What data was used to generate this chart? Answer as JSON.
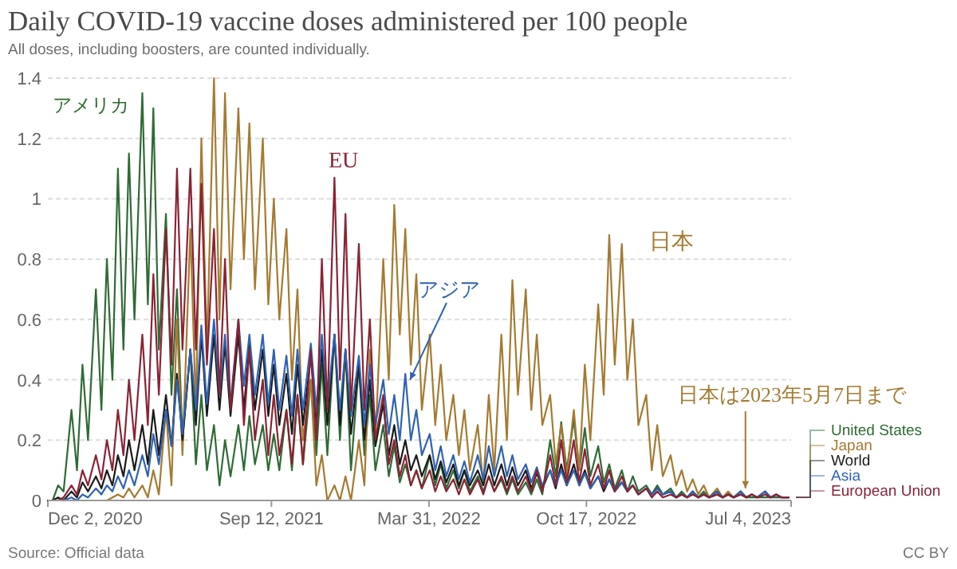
{
  "chart_data": {
    "type": "line",
    "title": "Daily COVID-19 vaccine doses administered per 100 people",
    "subtitle": "All doses, including boosters, are counted individually.",
    "x": [
      "2020-12-02",
      "2020-12-08",
      "2020-12-15",
      "2020-12-22",
      "2021-01-01",
      "2021-01-08",
      "2021-01-15",
      "2021-01-22",
      "2021-02-01",
      "2021-02-08",
      "2021-02-15",
      "2021-02-22",
      "2021-03-01",
      "2021-03-08",
      "2021-03-15",
      "2021-03-22",
      "2021-04-01",
      "2021-04-08",
      "2021-04-15",
      "2021-04-22",
      "2021-05-01",
      "2021-05-08",
      "2021-05-15",
      "2021-05-22",
      "2021-06-01",
      "2021-06-08",
      "2021-06-15",
      "2021-06-22",
      "2021-07-01",
      "2021-07-08",
      "2021-07-15",
      "2021-07-22",
      "2021-08-01",
      "2021-08-08",
      "2021-08-15",
      "2021-08-22",
      "2021-09-01",
      "2021-09-08",
      "2021-09-15",
      "2021-09-22",
      "2021-10-01",
      "2021-10-08",
      "2021-10-15",
      "2021-10-22",
      "2021-11-01",
      "2021-11-08",
      "2021-11-15",
      "2021-11-22",
      "2021-12-01",
      "2021-12-08",
      "2021-12-15",
      "2021-12-22",
      "2022-01-01",
      "2022-01-08",
      "2022-01-15",
      "2022-01-22",
      "2022-02-01",
      "2022-02-08",
      "2022-02-15",
      "2022-02-22",
      "2022-03-01",
      "2022-03-08",
      "2022-03-15",
      "2022-03-22",
      "2022-04-01",
      "2022-04-08",
      "2022-04-15",
      "2022-04-22",
      "2022-05-01",
      "2022-05-08",
      "2022-05-15",
      "2022-05-22",
      "2022-06-01",
      "2022-06-08",
      "2022-06-15",
      "2022-06-22",
      "2022-07-01",
      "2022-07-08",
      "2022-07-15",
      "2022-07-22",
      "2022-08-01",
      "2022-08-08",
      "2022-08-15",
      "2022-08-22",
      "2022-09-01",
      "2022-09-08",
      "2022-09-15",
      "2022-09-22",
      "2022-10-01",
      "2022-10-08",
      "2022-10-15",
      "2022-10-22",
      "2022-11-01",
      "2022-11-08",
      "2022-11-15",
      "2022-11-22",
      "2022-12-01",
      "2022-12-08",
      "2022-12-15",
      "2022-12-22",
      "2023-01-01",
      "2023-01-08",
      "2023-01-15",
      "2023-01-22",
      "2023-02-01",
      "2023-02-08",
      "2023-02-15",
      "2023-02-22",
      "2023-03-01",
      "2023-03-08",
      "2023-03-15",
      "2023-03-22",
      "2023-04-01",
      "2023-04-08",
      "2023-04-15",
      "2023-04-22",
      "2023-05-01",
      "2023-05-08",
      "2023-05-15",
      "2023-05-22",
      "2023-06-01",
      "2023-06-08",
      "2023-06-15",
      "2023-06-22",
      "2023-07-01"
    ],
    "series": [
      {
        "name": "United States",
        "color": "#2f6b35",
        "values": [
          0,
          0,
          0.05,
          0.03,
          0.3,
          0.1,
          0.45,
          0.2,
          0.7,
          0.3,
          0.8,
          0.4,
          1.1,
          0.5,
          1.15,
          0.6,
          1.35,
          0.65,
          1.3,
          0.5,
          0.95,
          0.35,
          0.7,
          0.2,
          0.5,
          0.12,
          0.35,
          0.1,
          0.25,
          0.05,
          0.2,
          0.08,
          0.25,
          0.1,
          0.28,
          0.12,
          0.25,
          0.1,
          0.22,
          0.1,
          0.3,
          0.1,
          0.35,
          0.12,
          0.4,
          0.15,
          0.45,
          0.15,
          0.55,
          0.2,
          0.5,
          0.1,
          0.45,
          0.15,
          0.35,
          0.1,
          0.25,
          0.08,
          0.18,
          0.06,
          0.12,
          0.05,
          0.1,
          0.04,
          0.15,
          0.05,
          0.12,
          0.04,
          0.1,
          0.04,
          0.1,
          0.03,
          0.08,
          0.03,
          0.08,
          0.03,
          0.07,
          0.02,
          0.07,
          0.02,
          0.06,
          0.02,
          0.07,
          0.02,
          0.2,
          0.08,
          0.26,
          0.1,
          0.27,
          0.1,
          0.24,
          0.08,
          0.18,
          0.06,
          0.12,
          0.04,
          0.1,
          0.03,
          0.08,
          0.03,
          0.05,
          0.02,
          0.05,
          0.02,
          0.04,
          0.01,
          0.03,
          0.01,
          0.03,
          0.01,
          0.03,
          0.01,
          0.02,
          0.01,
          0.02,
          0.01,
          0.02,
          0.01,
          0.01,
          0.01,
          0.01,
          0.01,
          0.01,
          0.01,
          0.01
        ]
      },
      {
        "name": "Japan",
        "color": "#a57a30",
        "values": [
          null,
          null,
          null,
          null,
          null,
          null,
          null,
          null,
          null,
          null,
          0,
          0.01,
          0.02,
          0.01,
          0.04,
          0.01,
          0.05,
          0.01,
          0.1,
          0.02,
          0.3,
          0.05,
          0.6,
          0.15,
          0.9,
          0.3,
          1.2,
          0.5,
          1.4,
          0.6,
          1.35,
          0.7,
          1.3,
          0.8,
          1.25,
          0.7,
          1.2,
          0.65,
          1,
          0.6,
          0.9,
          0.4,
          0.7,
          0.2,
          0.4,
          0.05,
          0.15,
          0,
          0.05,
          0,
          0.08,
          0,
          0.2,
          0.05,
          0.5,
          0.2,
          0.8,
          0.4,
          0.98,
          0.55,
          0.9,
          0.45,
          0.75,
          0.3,
          0.55,
          0.25,
          0.45,
          0.2,
          0.35,
          0.15,
          0.3,
          0.1,
          0.25,
          0.05,
          0.35,
          0.1,
          0.55,
          0.2,
          0.73,
          0.35,
          0.7,
          0.3,
          0.55,
          0.25,
          0.35,
          0.12,
          0.25,
          0.08,
          0.3,
          0.1,
          0.45,
          0.2,
          0.65,
          0.35,
          0.88,
          0.45,
          0.85,
          0.4,
          0.6,
          0.25,
          0.35,
          0.1,
          0.25,
          0.08,
          0.15,
          0.05,
          0.1,
          0.03,
          0.07,
          0.02,
          0.05,
          0.01,
          0.04,
          0.01,
          0.03,
          0.01,
          0.03,
          0.01,
          null,
          null,
          null,
          null,
          null,
          null,
          null
        ]
      },
      {
        "name": "World",
        "color": "#1a1a1a",
        "values": [
          0,
          0,
          0.01,
          0,
          0.03,
          0.01,
          0.06,
          0.03,
          0.08,
          0.04,
          0.1,
          0.05,
          0.15,
          0.08,
          0.2,
          0.1,
          0.25,
          0.12,
          0.3,
          0.15,
          0.35,
          0.18,
          0.42,
          0.2,
          0.5,
          0.25,
          0.55,
          0.28,
          0.55,
          0.3,
          0.52,
          0.28,
          0.55,
          0.3,
          0.52,
          0.3,
          0.5,
          0.28,
          0.45,
          0.25,
          0.42,
          0.22,
          0.45,
          0.25,
          0.48,
          0.25,
          0.5,
          0.25,
          0.55,
          0.25,
          0.5,
          0.22,
          0.45,
          0.2,
          0.4,
          0.18,
          0.32,
          0.15,
          0.25,
          0.12,
          0.2,
          0.1,
          0.15,
          0.08,
          0.15,
          0.07,
          0.13,
          0.06,
          0.12,
          0.05,
          0.1,
          0.05,
          0.1,
          0.05,
          0.12,
          0.05,
          0.12,
          0.05,
          0.11,
          0.05,
          0.1,
          0.04,
          0.09,
          0.04,
          0.1,
          0.04,
          0.12,
          0.05,
          0.12,
          0.05,
          0.1,
          0.04,
          0.08,
          0.03,
          0.07,
          0.03,
          0.06,
          0.03,
          0.05,
          0.02,
          0.04,
          0.02,
          0.04,
          0.02,
          0.03,
          0.01,
          0.02,
          0.01,
          0.03,
          0.01,
          0.02,
          0.01,
          0.03,
          0.01,
          0.02,
          0.01,
          0.03,
          0.01,
          0.02,
          0.01,
          0.03,
          0.01,
          0.02,
          0.01,
          0.01
        ]
      },
      {
        "name": "Asia",
        "color": "#2f62b3",
        "values": [
          0,
          0,
          0,
          0,
          0.01,
          0,
          0.02,
          0.01,
          0.04,
          0.02,
          0.05,
          0.03,
          0.08,
          0.04,
          0.1,
          0.05,
          0.15,
          0.08,
          0.22,
          0.12,
          0.3,
          0.18,
          0.4,
          0.22,
          0.5,
          0.3,
          0.58,
          0.32,
          0.6,
          0.35,
          0.55,
          0.32,
          0.6,
          0.38,
          0.55,
          0.35,
          0.55,
          0.32,
          0.5,
          0.3,
          0.48,
          0.28,
          0.5,
          0.3,
          0.52,
          0.3,
          0.55,
          0.32,
          0.55,
          0.3,
          0.5,
          0.28,
          0.48,
          0.25,
          0.45,
          0.25,
          0.4,
          0.22,
          0.35,
          0.2,
          0.42,
          0.2,
          0.3,
          0.15,
          0.22,
          0.1,
          0.18,
          0.08,
          0.15,
          0.07,
          0.13,
          0.06,
          0.15,
          0.07,
          0.18,
          0.08,
          0.18,
          0.08,
          0.15,
          0.07,
          0.12,
          0.06,
          0.11,
          0.05,
          0.1,
          0.05,
          0.1,
          0.05,
          0.1,
          0.05,
          0.09,
          0.04,
          0.08,
          0.04,
          0.07,
          0.03,
          0.06,
          0.03,
          0.05,
          0.02,
          0.04,
          0.02,
          0.04,
          0.02,
          0.03,
          0.01,
          0.02,
          0.01,
          0.03,
          0.01,
          0.02,
          0.01,
          0.03,
          0.01,
          0.02,
          0.01,
          0.03,
          0.01,
          0.02,
          0.01,
          0.03,
          0.01,
          0.02,
          0.01,
          0.01
        ]
      },
      {
        "name": "European Union",
        "color": "#8a2334",
        "values": [
          0,
          0,
          0,
          0.01,
          0.05,
          0.02,
          0.1,
          0.05,
          0.15,
          0.07,
          0.2,
          0.1,
          0.3,
          0.15,
          0.4,
          0.2,
          0.55,
          0.25,
          0.75,
          0.35,
          0.9,
          0.45,
          1.1,
          0.5,
          1.1,
          0.5,
          1.05,
          0.45,
          0.9,
          0.35,
          0.8,
          0.3,
          0.6,
          0.25,
          0.5,
          0.2,
          0.4,
          0.15,
          0.35,
          0.15,
          0.3,
          0.12,
          0.35,
          0.12,
          0.5,
          0.2,
          0.8,
          0.3,
          1.07,
          0.4,
          0.95,
          0.3,
          0.85,
          0.3,
          0.6,
          0.2,
          0.35,
          0.12,
          0.2,
          0.08,
          0.15,
          0.05,
          0.1,
          0.04,
          0.1,
          0.03,
          0.08,
          0.03,
          0.07,
          0.02,
          0.07,
          0.02,
          0.07,
          0.02,
          0.08,
          0.03,
          0.08,
          0.03,
          0.08,
          0.03,
          0.08,
          0.03,
          0.1,
          0.03,
          0.15,
          0.05,
          0.2,
          0.06,
          0.2,
          0.06,
          0.17,
          0.05,
          0.12,
          0.04,
          0.1,
          0.03,
          0.08,
          0.03,
          0.05,
          0.02,
          0.04,
          0.01,
          0.03,
          0.01,
          0.02,
          0.01,
          0.02,
          0.01,
          0.02,
          0.01,
          0.02,
          0.01,
          0.02,
          0.01,
          0.02,
          0.01,
          0.02,
          0.01,
          0.02,
          0.01,
          0.02,
          0.01,
          0.02,
          0.01,
          0.01
        ]
      }
    ],
    "xlim": [
      "2020-12-02",
      "2023-07-04"
    ],
    "xticks": [
      {
        "value": "2020-12-02",
        "label": "Dec 2, 2020"
      },
      {
        "value": "2021-09-12",
        "label": "Sep 12, 2021"
      },
      {
        "value": "2022-03-31",
        "label": "Mar 31, 2022"
      },
      {
        "value": "2022-10-17",
        "label": "Oct 17, 2022"
      },
      {
        "value": "2023-07-04",
        "label": "Jul 4, 2023"
      }
    ],
    "ylim": [
      0,
      1.4
    ],
    "yticks": [
      0,
      0.2,
      0.4,
      0.6,
      0.8,
      1,
      1.2,
      1.4
    ],
    "grid": "y",
    "legend": "right",
    "annotations": [
      "アメリカ",
      "EU",
      "日本",
      {
        "text": "アジア",
        "x": "2022-03-07",
        "y": 0.4
      },
      {
        "text": "日本は2023年5月7日まで",
        "x": "2023-05-07",
        "y": 0.04
      },
      "Source: Official data",
      "CC BY"
    ]
  }
}
